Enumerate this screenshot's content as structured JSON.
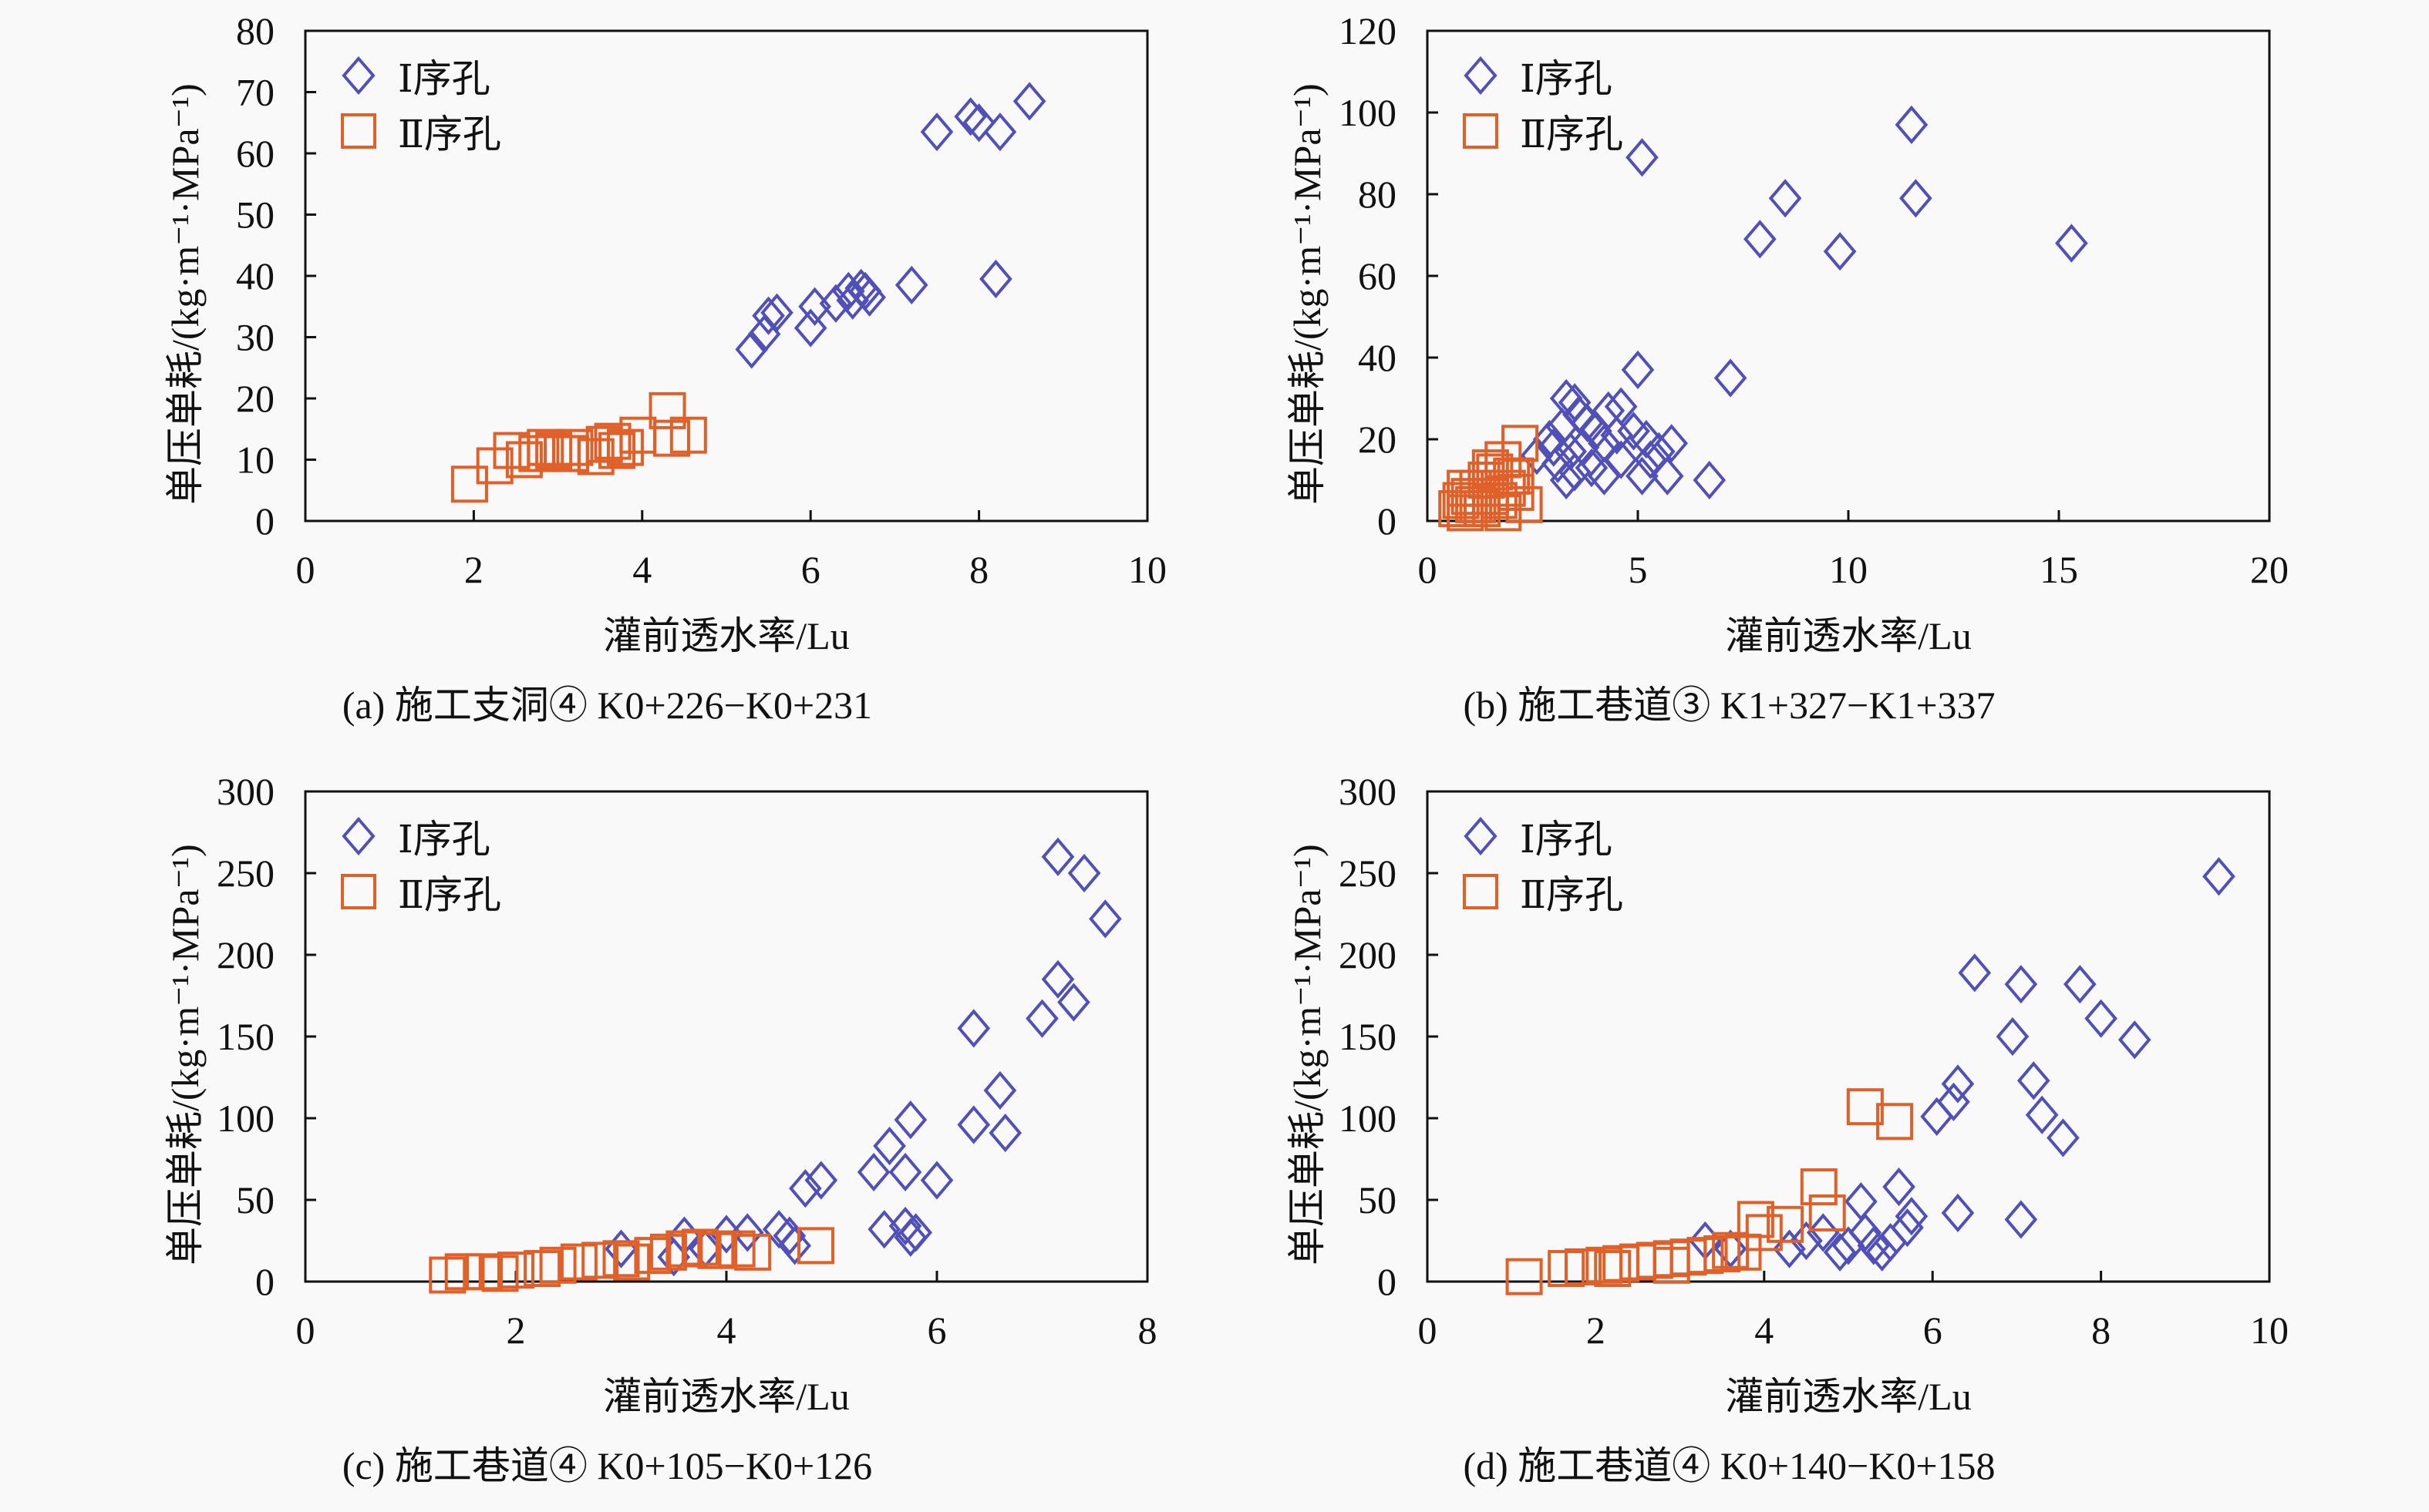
{
  "colors": {
    "series1": "#5050b8",
    "series2": "#e0602a",
    "axis": "#111111"
  },
  "legend": {
    "series1": "Ⅰ序孔",
    "series2": "Ⅱ序孔"
  },
  "chart_data": [
    {
      "id": "a",
      "type": "scatter",
      "caption": "(a) 施工支洞④ K0+226−K0+231",
      "xlabel": "灌前透水率/Lu",
      "ylabel": "单压单耗/(kg·m⁻¹·MPa⁻¹)",
      "xlim": [
        0,
        10
      ],
      "ylim": [
        0,
        80
      ],
      "xticks": [
        0,
        2,
        4,
        6,
        8,
        10
      ],
      "yticks": [
        0,
        10,
        20,
        30,
        40,
        50,
        60,
        70,
        80
      ],
      "legend_position": "top-left",
      "series": [
        {
          "name": "Ⅰ序孔",
          "marker": "diamond",
          "points": [
            [
              5.3,
              28
            ],
            [
              5.45,
              30.5
            ],
            [
              5.5,
              33.5
            ],
            [
              5.6,
              34
            ],
            [
              6.0,
              31.5
            ],
            [
              6.05,
              35
            ],
            [
              6.3,
              35.5
            ],
            [
              6.45,
              37.5
            ],
            [
              6.5,
              36
            ],
            [
              6.6,
              38
            ],
            [
              6.65,
              37.5
            ],
            [
              6.7,
              36.5
            ],
            [
              7.2,
              38.5
            ],
            [
              7.5,
              63.5
            ],
            [
              7.9,
              66
            ],
            [
              8.0,
              65
            ],
            [
              8.25,
              63.5
            ],
            [
              8.6,
              68.5
            ],
            [
              8.2,
              39.5
            ]
          ]
        },
        {
          "name": "Ⅱ序孔",
          "marker": "square",
          "points": [
            [
              1.95,
              6
            ],
            [
              2.25,
              9
            ],
            [
              2.45,
              11.5
            ],
            [
              2.6,
              10
            ],
            [
              2.75,
              11
            ],
            [
              2.85,
              12
            ],
            [
              2.95,
              11.5
            ],
            [
              3.05,
              11
            ],
            [
              3.15,
              11
            ],
            [
              3.2,
              12
            ],
            [
              3.45,
              10.5
            ],
            [
              3.55,
              12.5
            ],
            [
              3.65,
              13
            ],
            [
              3.7,
              11.5
            ],
            [
              3.8,
              12
            ],
            [
              3.95,
              14
            ],
            [
              4.3,
              18
            ],
            [
              4.35,
              13.5
            ],
            [
              4.55,
              14
            ]
          ]
        }
      ]
    },
    {
      "id": "b",
      "type": "scatter",
      "caption": "(b) 施工巷道③ K1+327−K1+337",
      "xlabel": "灌前透水率/Lu",
      "ylabel": "单压单耗/(kg·m⁻¹·MPa⁻¹)",
      "xlim": [
        0,
        20
      ],
      "ylim": [
        0,
        120
      ],
      "xticks": [
        0,
        5,
        10,
        15,
        20
      ],
      "yticks": [
        0,
        20,
        40,
        60,
        80,
        100,
        120
      ],
      "legend_position": "top-left",
      "series": [
        {
          "name": "Ⅰ序孔",
          "marker": "diamond",
          "points": [
            [
              5.1,
              89
            ],
            [
              8.5,
              79
            ],
            [
              11.5,
              97
            ],
            [
              11.6,
              79
            ],
            [
              7.9,
              69
            ],
            [
              9.8,
              66
            ],
            [
              15.3,
              68
            ],
            [
              5.0,
              37
            ],
            [
              7.2,
              35
            ],
            [
              3.3,
              30
            ],
            [
              3.5,
              29
            ],
            [
              3.2,
              23
            ],
            [
              3.6,
              26
            ],
            [
              3.8,
              24
            ],
            [
              4.0,
              22
            ],
            [
              4.3,
              27
            ],
            [
              4.6,
              28
            ],
            [
              4.9,
              22
            ],
            [
              3.0,
              18
            ],
            [
              3.4,
              17
            ],
            [
              3.7,
              18
            ],
            [
              4.2,
              19
            ],
            [
              4.5,
              21
            ],
            [
              5.2,
              20
            ],
            [
              5.5,
              17
            ],
            [
              5.8,
              19
            ],
            [
              3.1,
              14
            ],
            [
              3.5,
              12
            ],
            [
              3.9,
              13
            ],
            [
              4.2,
              11
            ],
            [
              4.6,
              15
            ],
            [
              5.3,
              15
            ],
            [
              5.1,
              11
            ],
            [
              5.7,
              11
            ],
            [
              6.7,
              10
            ],
            [
              2.9,
              20
            ],
            [
              2.6,
              16
            ],
            [
              3.3,
              10
            ]
          ]
        },
        {
          "name": "Ⅱ序孔",
          "marker": "square",
          "points": [
            [
              0.7,
              3
            ],
            [
              0.8,
              5
            ],
            [
              0.9,
              2
            ],
            [
              1.0,
              6
            ],
            [
              1.1,
              4
            ],
            [
              1.2,
              8
            ],
            [
              1.3,
              3
            ],
            [
              1.4,
              10
            ],
            [
              1.5,
              6
            ],
            [
              1.6,
              12
            ],
            [
              1.7,
              5
            ],
            [
              1.8,
              15
            ],
            [
              1.9,
              8
            ],
            [
              2.0,
              11
            ],
            [
              2.1,
              7
            ],
            [
              2.2,
              19
            ],
            [
              2.3,
              4
            ],
            [
              1.5,
              13
            ],
            [
              1.2,
              4
            ],
            [
              0.9,
              8
            ],
            [
              1.8,
              2
            ],
            [
              2.1,
              11
            ]
          ]
        }
      ]
    },
    {
      "id": "c",
      "type": "scatter",
      "caption": "(c) 施工巷道④ K0+105−K0+126",
      "xlabel": "灌前透水率/Lu",
      "ylabel": "单压单耗/(kg·m⁻¹·MPa⁻¹)",
      "xlim": [
        0,
        8
      ],
      "ylim": [
        0,
        300
      ],
      "xticks": [
        0,
        2,
        4,
        6,
        8
      ],
      "yticks": [
        0,
        50,
        100,
        150,
        200,
        250,
        300
      ],
      "legend_position": "top-left",
      "series": [
        {
          "name": "Ⅰ序孔",
          "marker": "diamond",
          "points": [
            [
              7.15,
              260
            ],
            [
              7.4,
              250
            ],
            [
              7.6,
              222
            ],
            [
              7.15,
              185
            ],
            [
              7.3,
              171
            ],
            [
              7.0,
              161
            ],
            [
              6.35,
              155
            ],
            [
              6.6,
              117
            ],
            [
              6.35,
              96
            ],
            [
              6.65,
              91
            ],
            [
              5.75,
              99
            ],
            [
              5.55,
              83
            ],
            [
              5.4,
              67
            ],
            [
              5.7,
              67
            ],
            [
              4.75,
              57
            ],
            [
              4.9,
              62
            ],
            [
              6.0,
              62
            ],
            [
              5.5,
              32
            ],
            [
              5.7,
              34
            ],
            [
              5.75,
              27
            ],
            [
              5.8,
              30
            ],
            [
              4.5,
              32
            ],
            [
              4.6,
              28
            ],
            [
              4.65,
              22
            ],
            [
              4.0,
              29
            ],
            [
              3.6,
              28
            ],
            [
              4.2,
              30
            ],
            [
              3.8,
              20
            ],
            [
              3.0,
              20
            ],
            [
              3.5,
              15
            ]
          ]
        },
        {
          "name": "Ⅱ序孔",
          "marker": "square",
          "points": [
            [
              1.35,
              4
            ],
            [
              1.5,
              6
            ],
            [
              1.7,
              6
            ],
            [
              1.85,
              5
            ],
            [
              2.0,
              7
            ],
            [
              2.25,
              8
            ],
            [
              2.4,
              10
            ],
            [
              2.6,
              12
            ],
            [
              2.8,
              13
            ],
            [
              3.0,
              14
            ],
            [
              3.1,
              12
            ],
            [
              3.3,
              16
            ],
            [
              3.45,
              18
            ],
            [
              3.6,
              20
            ],
            [
              3.75,
              21
            ],
            [
              3.9,
              19
            ],
            [
              4.1,
              20
            ],
            [
              4.25,
              18
            ],
            [
              4.85,
              22
            ]
          ]
        }
      ]
    },
    {
      "id": "d",
      "type": "scatter",
      "caption": "(d) 施工巷道④ K0+140−K0+158",
      "xlabel": "灌前透水率/Lu",
      "ylabel": "单压单耗/(kg·m⁻¹·MPa⁻¹)",
      "xlim": [
        0,
        10
      ],
      "ylim": [
        0,
        300
      ],
      "xticks": [
        0,
        2,
        4,
        6,
        8,
        10
      ],
      "yticks": [
        0,
        50,
        100,
        150,
        200,
        250,
        300
      ],
      "legend_position": "top-left",
      "series": [
        {
          "name": "Ⅰ序孔",
          "marker": "diamond",
          "points": [
            [
              9.4,
              248
            ],
            [
              6.5,
              189
            ],
            [
              7.05,
              182
            ],
            [
              7.75,
              182
            ],
            [
              8.0,
              161
            ],
            [
              8.4,
              148
            ],
            [
              6.95,
              150
            ],
            [
              7.2,
              123
            ],
            [
              7.3,
              102
            ],
            [
              7.55,
              88
            ],
            [
              6.3,
              121
            ],
            [
              6.25,
              110
            ],
            [
              6.05,
              101
            ],
            [
              5.15,
              49
            ],
            [
              5.6,
              58
            ],
            [
              6.3,
              42
            ],
            [
              7.05,
              38
            ],
            [
              5.75,
              40
            ],
            [
              5.7,
              33
            ],
            [
              3.3,
              25
            ],
            [
              4.5,
              25
            ],
            [
              5.0,
              22
            ],
            [
              5.3,
              22
            ],
            [
              5.5,
              24
            ],
            [
              4.3,
              20
            ],
            [
              3.6,
              20
            ],
            [
              4.7,
              30
            ],
            [
              5.2,
              30
            ],
            [
              4.9,
              18
            ],
            [
              5.4,
              18
            ]
          ]
        },
        {
          "name": "Ⅱ序孔",
          "marker": "square",
          "points": [
            [
              1.15,
              3
            ],
            [
              1.65,
              8
            ],
            [
              1.85,
              9
            ],
            [
              2.1,
              10
            ],
            [
              2.3,
              11
            ],
            [
              2.5,
              12
            ],
            [
              2.7,
              13
            ],
            [
              2.9,
              14
            ],
            [
              3.1,
              15
            ],
            [
              3.3,
              16
            ],
            [
              3.5,
              17
            ],
            [
              3.75,
              18
            ],
            [
              3.9,
              38
            ],
            [
              4.0,
              30
            ],
            [
              4.25,
              35
            ],
            [
              4.65,
              58
            ],
            [
              4.75,
              42
            ],
            [
              5.2,
              107
            ],
            [
              5.55,
              98
            ],
            [
              2.2,
              8
            ],
            [
              2.9,
              10
            ],
            [
              3.6,
              19
            ]
          ]
        }
      ]
    }
  ]
}
